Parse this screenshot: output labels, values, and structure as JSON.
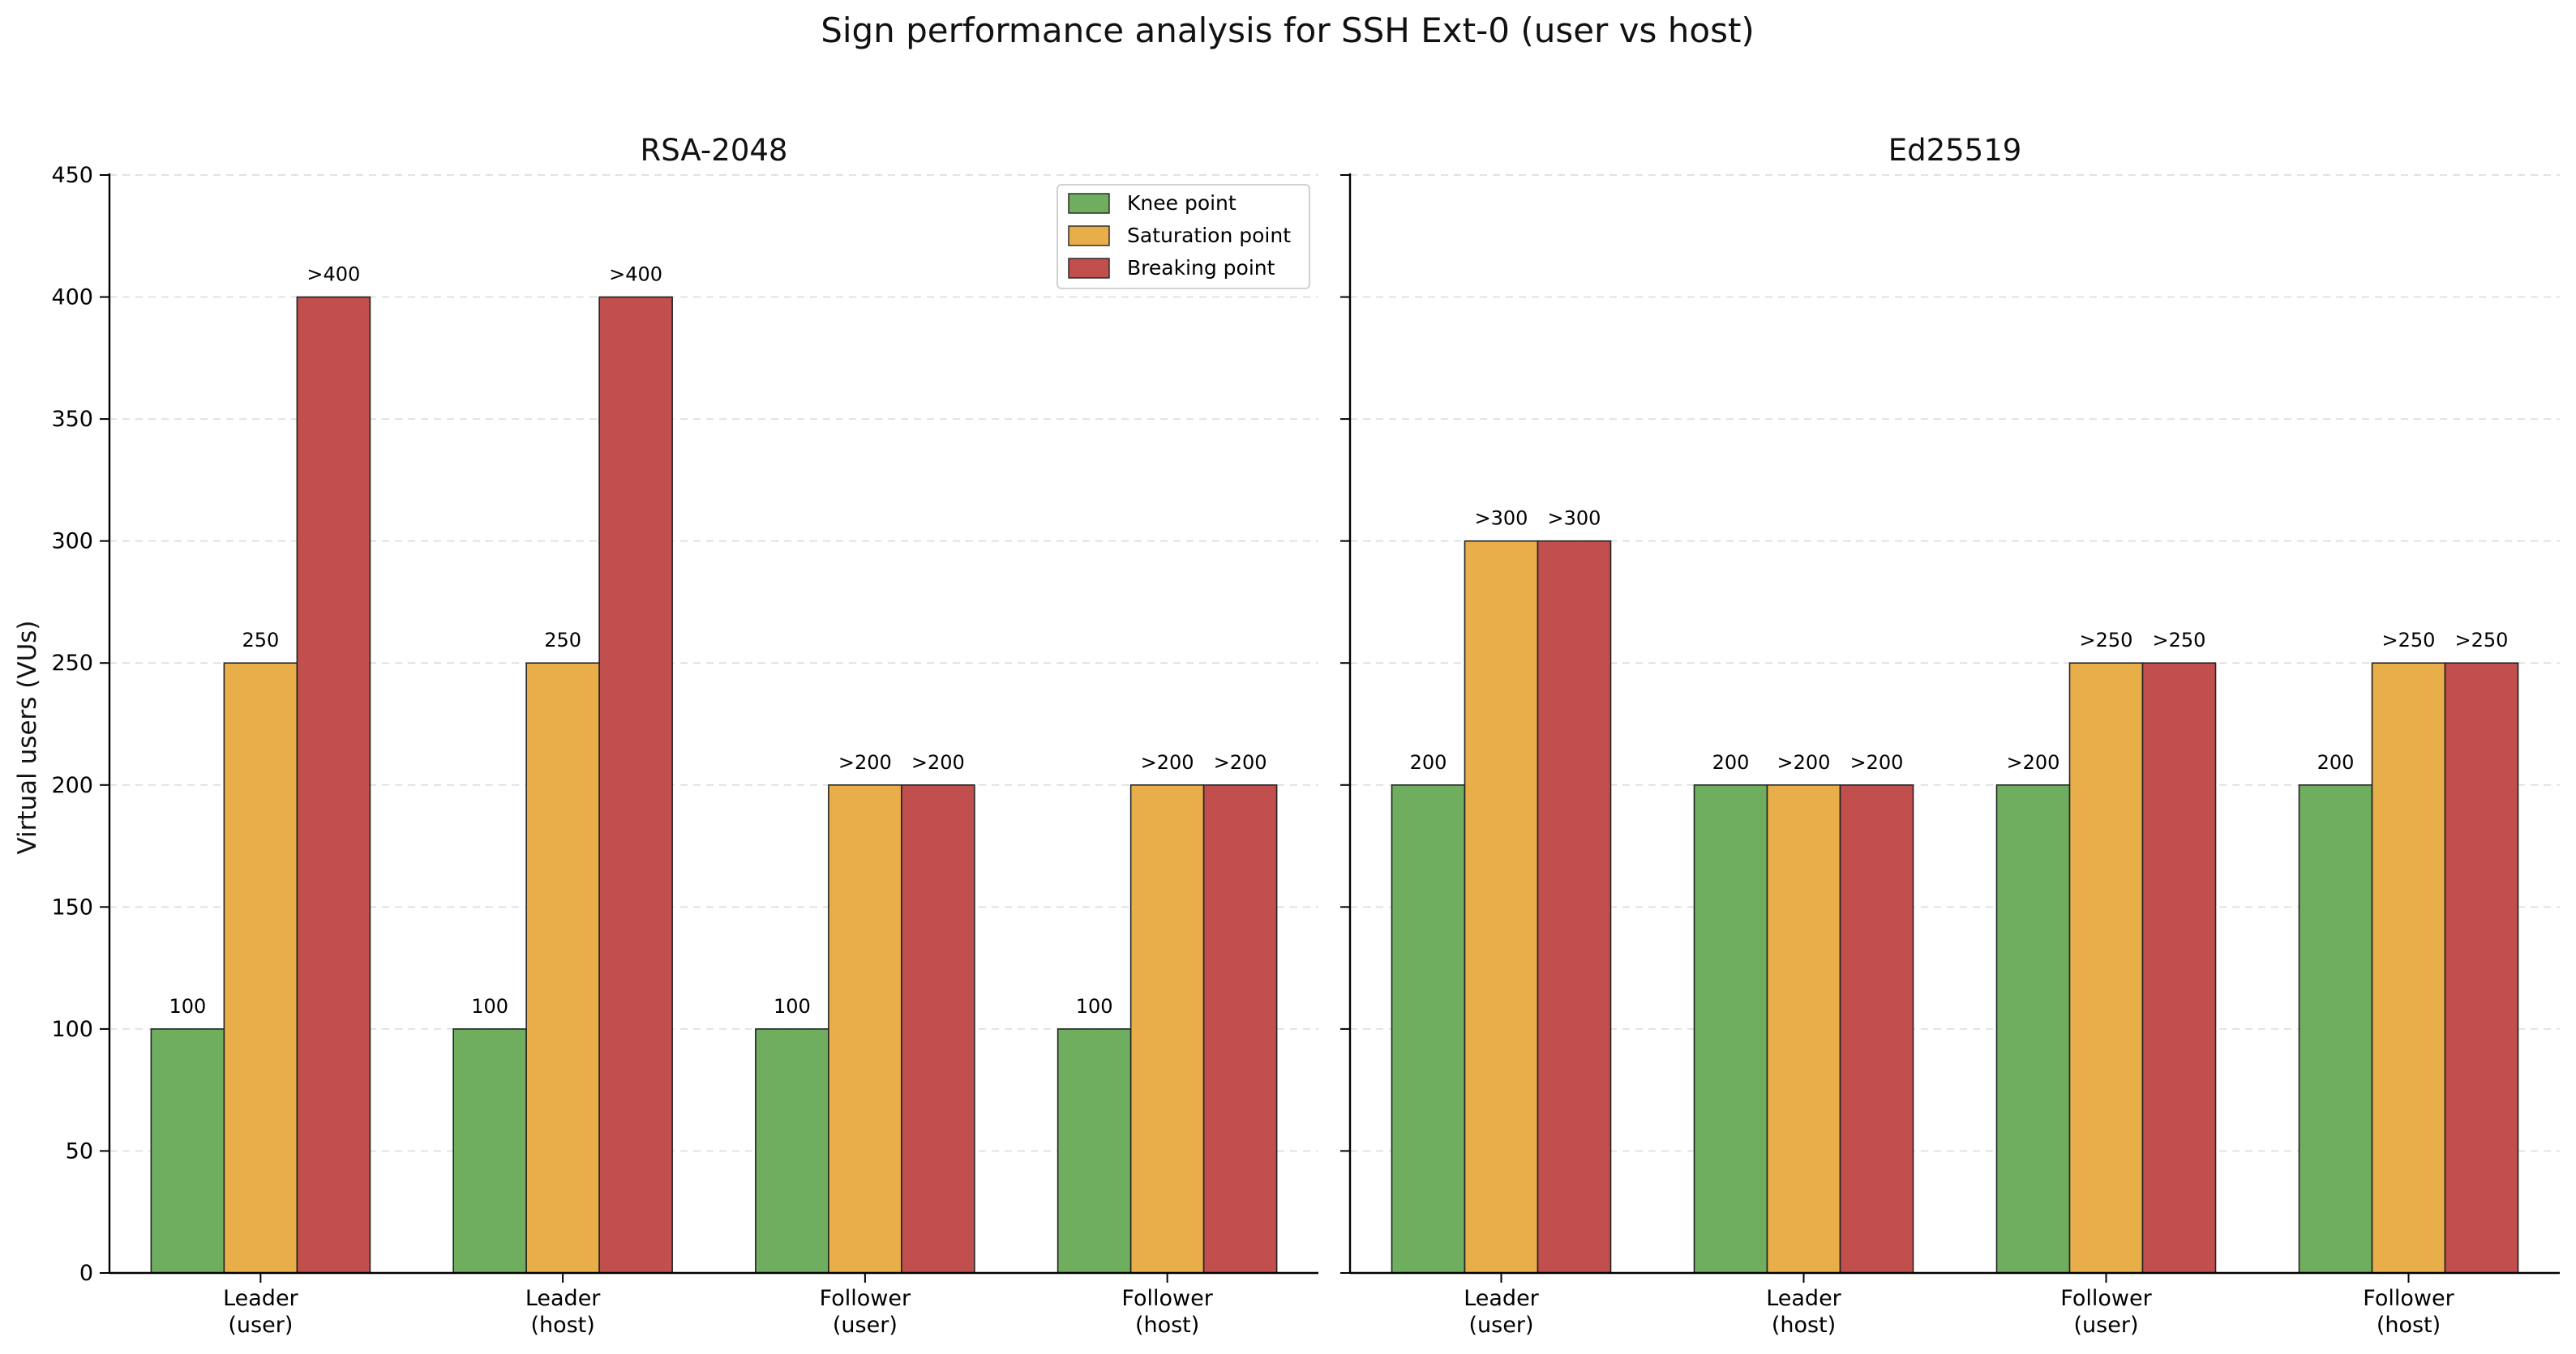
{
  "figure": {
    "title": "Sign performance analysis for SSH Ext-0 (user vs host)",
    "ylabel": "Virtual users (VUs)"
  },
  "legend": [
    {
      "label": "Knee point",
      "color": "#6fae5e"
    },
    {
      "label": "Saturation point",
      "color": "#e8ae4a"
    },
    {
      "label": "Breaking point",
      "color": "#c04f4d"
    }
  ],
  "chart_data": [
    {
      "type": "bar",
      "title": "RSA-2048",
      "ylabel": "Virtual users (VUs)",
      "xlabel": "",
      "ylim": [
        0,
        450
      ],
      "yticks": [
        0,
        50,
        100,
        150,
        200,
        250,
        300,
        350,
        400,
        450
      ],
      "grid": "y-dashed",
      "legend_position": "top-right",
      "categories": [
        [
          "Leader",
          "(user)"
        ],
        [
          "Leader",
          "(host)"
        ],
        [
          "Follower",
          "(user)"
        ],
        [
          "Follower",
          "(host)"
        ]
      ],
      "series": [
        {
          "name": "Knee point",
          "color": "#6fae5e",
          "values": [
            100,
            100,
            100,
            100
          ],
          "labels": [
            "100",
            "100",
            "100",
            "100"
          ]
        },
        {
          "name": "Saturation point",
          "color": "#e8ae4a",
          "values": [
            250,
            250,
            200,
            200
          ],
          "labels": [
            "250",
            "250",
            ">200",
            ">200"
          ]
        },
        {
          "name": "Breaking point",
          "color": "#c04f4d",
          "values": [
            400,
            400,
            200,
            200
          ],
          "labels": [
            ">400",
            ">400",
            ">200",
            ">200"
          ]
        }
      ]
    },
    {
      "type": "bar",
      "title": "Ed25519",
      "xlabel": "",
      "ylim": [
        0,
        450
      ],
      "yticks": [
        0,
        50,
        100,
        150,
        200,
        250,
        300,
        350,
        400,
        450
      ],
      "grid": "y-dashed",
      "categories": [
        [
          "Leader",
          "(user)"
        ],
        [
          "Leader",
          "(host)"
        ],
        [
          "Follower",
          "(user)"
        ],
        [
          "Follower",
          "(host)"
        ]
      ],
      "series": [
        {
          "name": "Knee point",
          "color": "#6fae5e",
          "values": [
            200,
            200,
            200,
            200
          ],
          "labels": [
            "200",
            "200",
            ">200",
            "200"
          ]
        },
        {
          "name": "Saturation point",
          "color": "#e8ae4a",
          "values": [
            300,
            200,
            250,
            250
          ],
          "labels": [
            ">300",
            ">200",
            ">250",
            ">250"
          ]
        },
        {
          "name": "Breaking point",
          "color": "#c04f4d",
          "values": [
            300,
            200,
            250,
            250
          ],
          "labels": [
            ">300",
            ">200",
            ">250",
            ">250"
          ]
        }
      ]
    }
  ]
}
